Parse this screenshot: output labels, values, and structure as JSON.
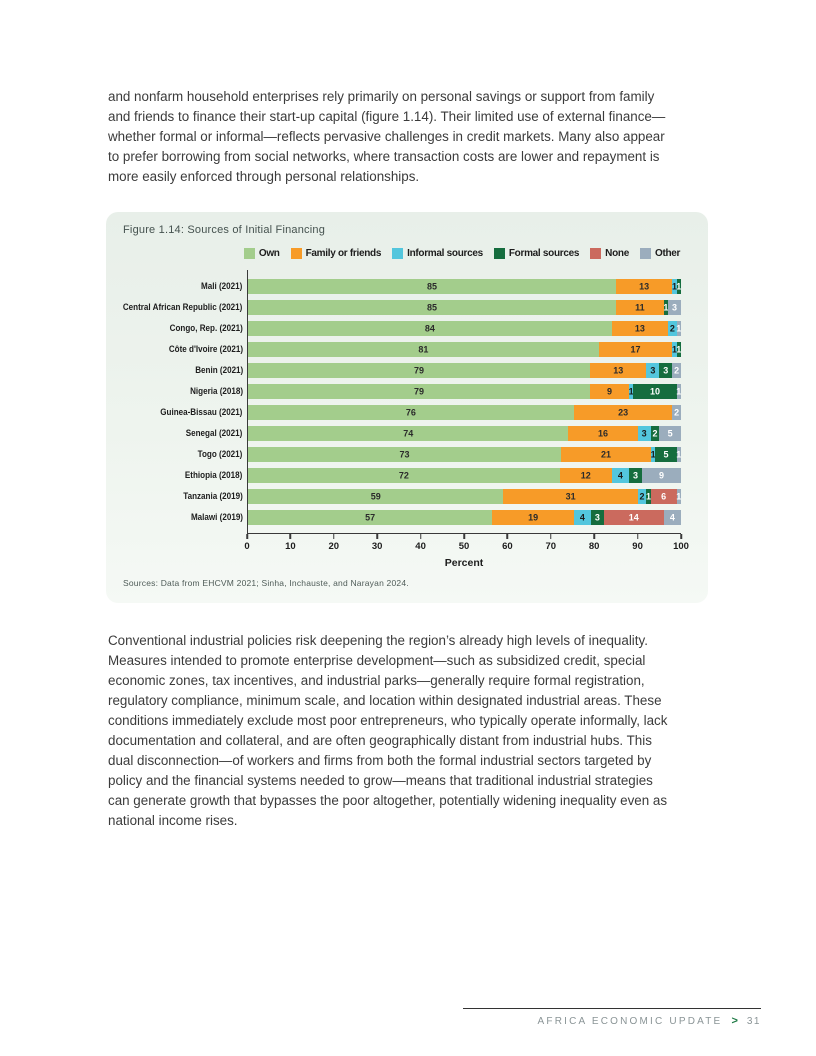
{
  "page": {
    "paragraph_top": "and nonfarm household enterprises rely primarily on personal savings or support from family\nand friends to finance their start-up capital (figure 1.14). Their limited use of external finance—\nwhether formal or informal—reflects pervasive challenges in credit markets. Many also appear\nto prefer borrowing from social networks, where transaction costs are lower and repayment is\nmore easily enforced through personal relationships.",
    "paragraph_bottom": "Conventional industrial policies risk deepening the region’s already high levels of inequality.\nMeasures intended to promote enterprise development—such as subsidized credit, special\neconomic zones, tax incentives, and industrial parks—generally require formal registration,\nregulatory compliance, minimum scale, and location within designated industrial areas. These\nconditions immediately exclude most poor entrepreneurs, who typically operate informally, lack\ndocumentation and collateral, and are often geographically distant from industrial hubs. This\ndual disconnection—of workers and firms from both the formal industrial sectors targeted by\npolicy and the financial systems needed to grow—means that traditional industrial strategies\ncan generate growth that bypasses the poor altogether, potentially widening inequality even as\nnational income rises.",
    "footer": {
      "title": "AFRICA ECONOMIC UPDATE",
      "arrow": ">",
      "page_number": "31"
    }
  },
  "figure": {
    "title": "Figure 1.14: Sources of Initial Financing",
    "source": "Sources: Data from EHCVM 2021; Sinha, Inchauste, and Narayan 2024."
  },
  "chart_data": {
    "type": "bar",
    "stacked": true,
    "orientation": "horizontal",
    "title": "Figure 1.14: Sources of Initial Financing",
    "xlabel": "Percent",
    "xlim": [
      0,
      100
    ],
    "xticks": [
      0,
      10,
      20,
      30,
      40,
      50,
      60,
      70,
      80,
      90,
      100
    ],
    "grid": false,
    "legend_position": "top",
    "categories": [
      "Mali (2021)",
      "Central African Republic (2021)",
      "Congo, Rep. (2021)",
      "Côte d'Ivoire (2021)",
      "Benin (2021)",
      "Nigeria (2018)",
      "Guinea-Bissau (2021)",
      "Senegal (2021)",
      "Togo (2021)",
      "Ethiopia (2018)",
      "Tanzania (2019)",
      "Malawi (2019)"
    ],
    "series": [
      {
        "name": "Own",
        "color": "#a3cd8c",
        "label_color": "#2b2b2b",
        "values": [
          85,
          85,
          84,
          81,
          79,
          79,
          76,
          74,
          73,
          72,
          59,
          57
        ]
      },
      {
        "name": "Family or friends",
        "color": "#f79b28",
        "label_color": "#2b2b2b",
        "values": [
          13,
          11,
          13,
          17,
          13,
          9,
          23,
          16,
          21,
          12,
          31,
          19
        ]
      },
      {
        "name": "Informal sources",
        "color": "#53c6dd",
        "label_color": "#1a1a1a",
        "values": [
          1,
          0,
          2,
          1,
          3,
          1,
          0,
          3,
          1,
          4,
          2,
          4
        ]
      },
      {
        "name": "Formal sources",
        "color": "#156d3e",
        "label_color": "#ffffff",
        "values": [
          1,
          1,
          0,
          1,
          3,
          10,
          0,
          2,
          5,
          3,
          1,
          3
        ]
      },
      {
        "name": "None",
        "color": "#cb6a5e",
        "label_color": "#ffffff",
        "values": [
          0,
          0,
          0,
          0,
          0,
          0,
          0,
          0,
          0,
          0,
          6,
          14
        ]
      },
      {
        "name": "Other",
        "color": "#9badbd",
        "label_color": "#ffffff",
        "values": [
          0,
          3,
          1,
          0,
          2,
          1,
          2,
          5,
          1,
          9,
          1,
          4
        ]
      }
    ]
  }
}
